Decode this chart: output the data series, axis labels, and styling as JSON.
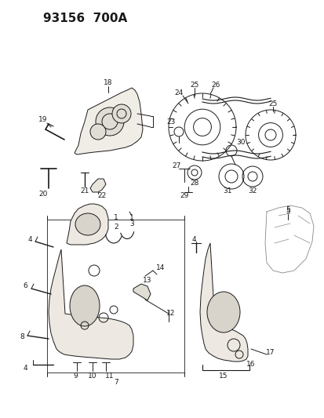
{
  "title": "93156  700A",
  "bg_color": "#ffffff",
  "line_color": "#1a1a1a",
  "fill_color": "#e8e5de",
  "title_fontsize": 11,
  "label_fontsize": 6.5
}
